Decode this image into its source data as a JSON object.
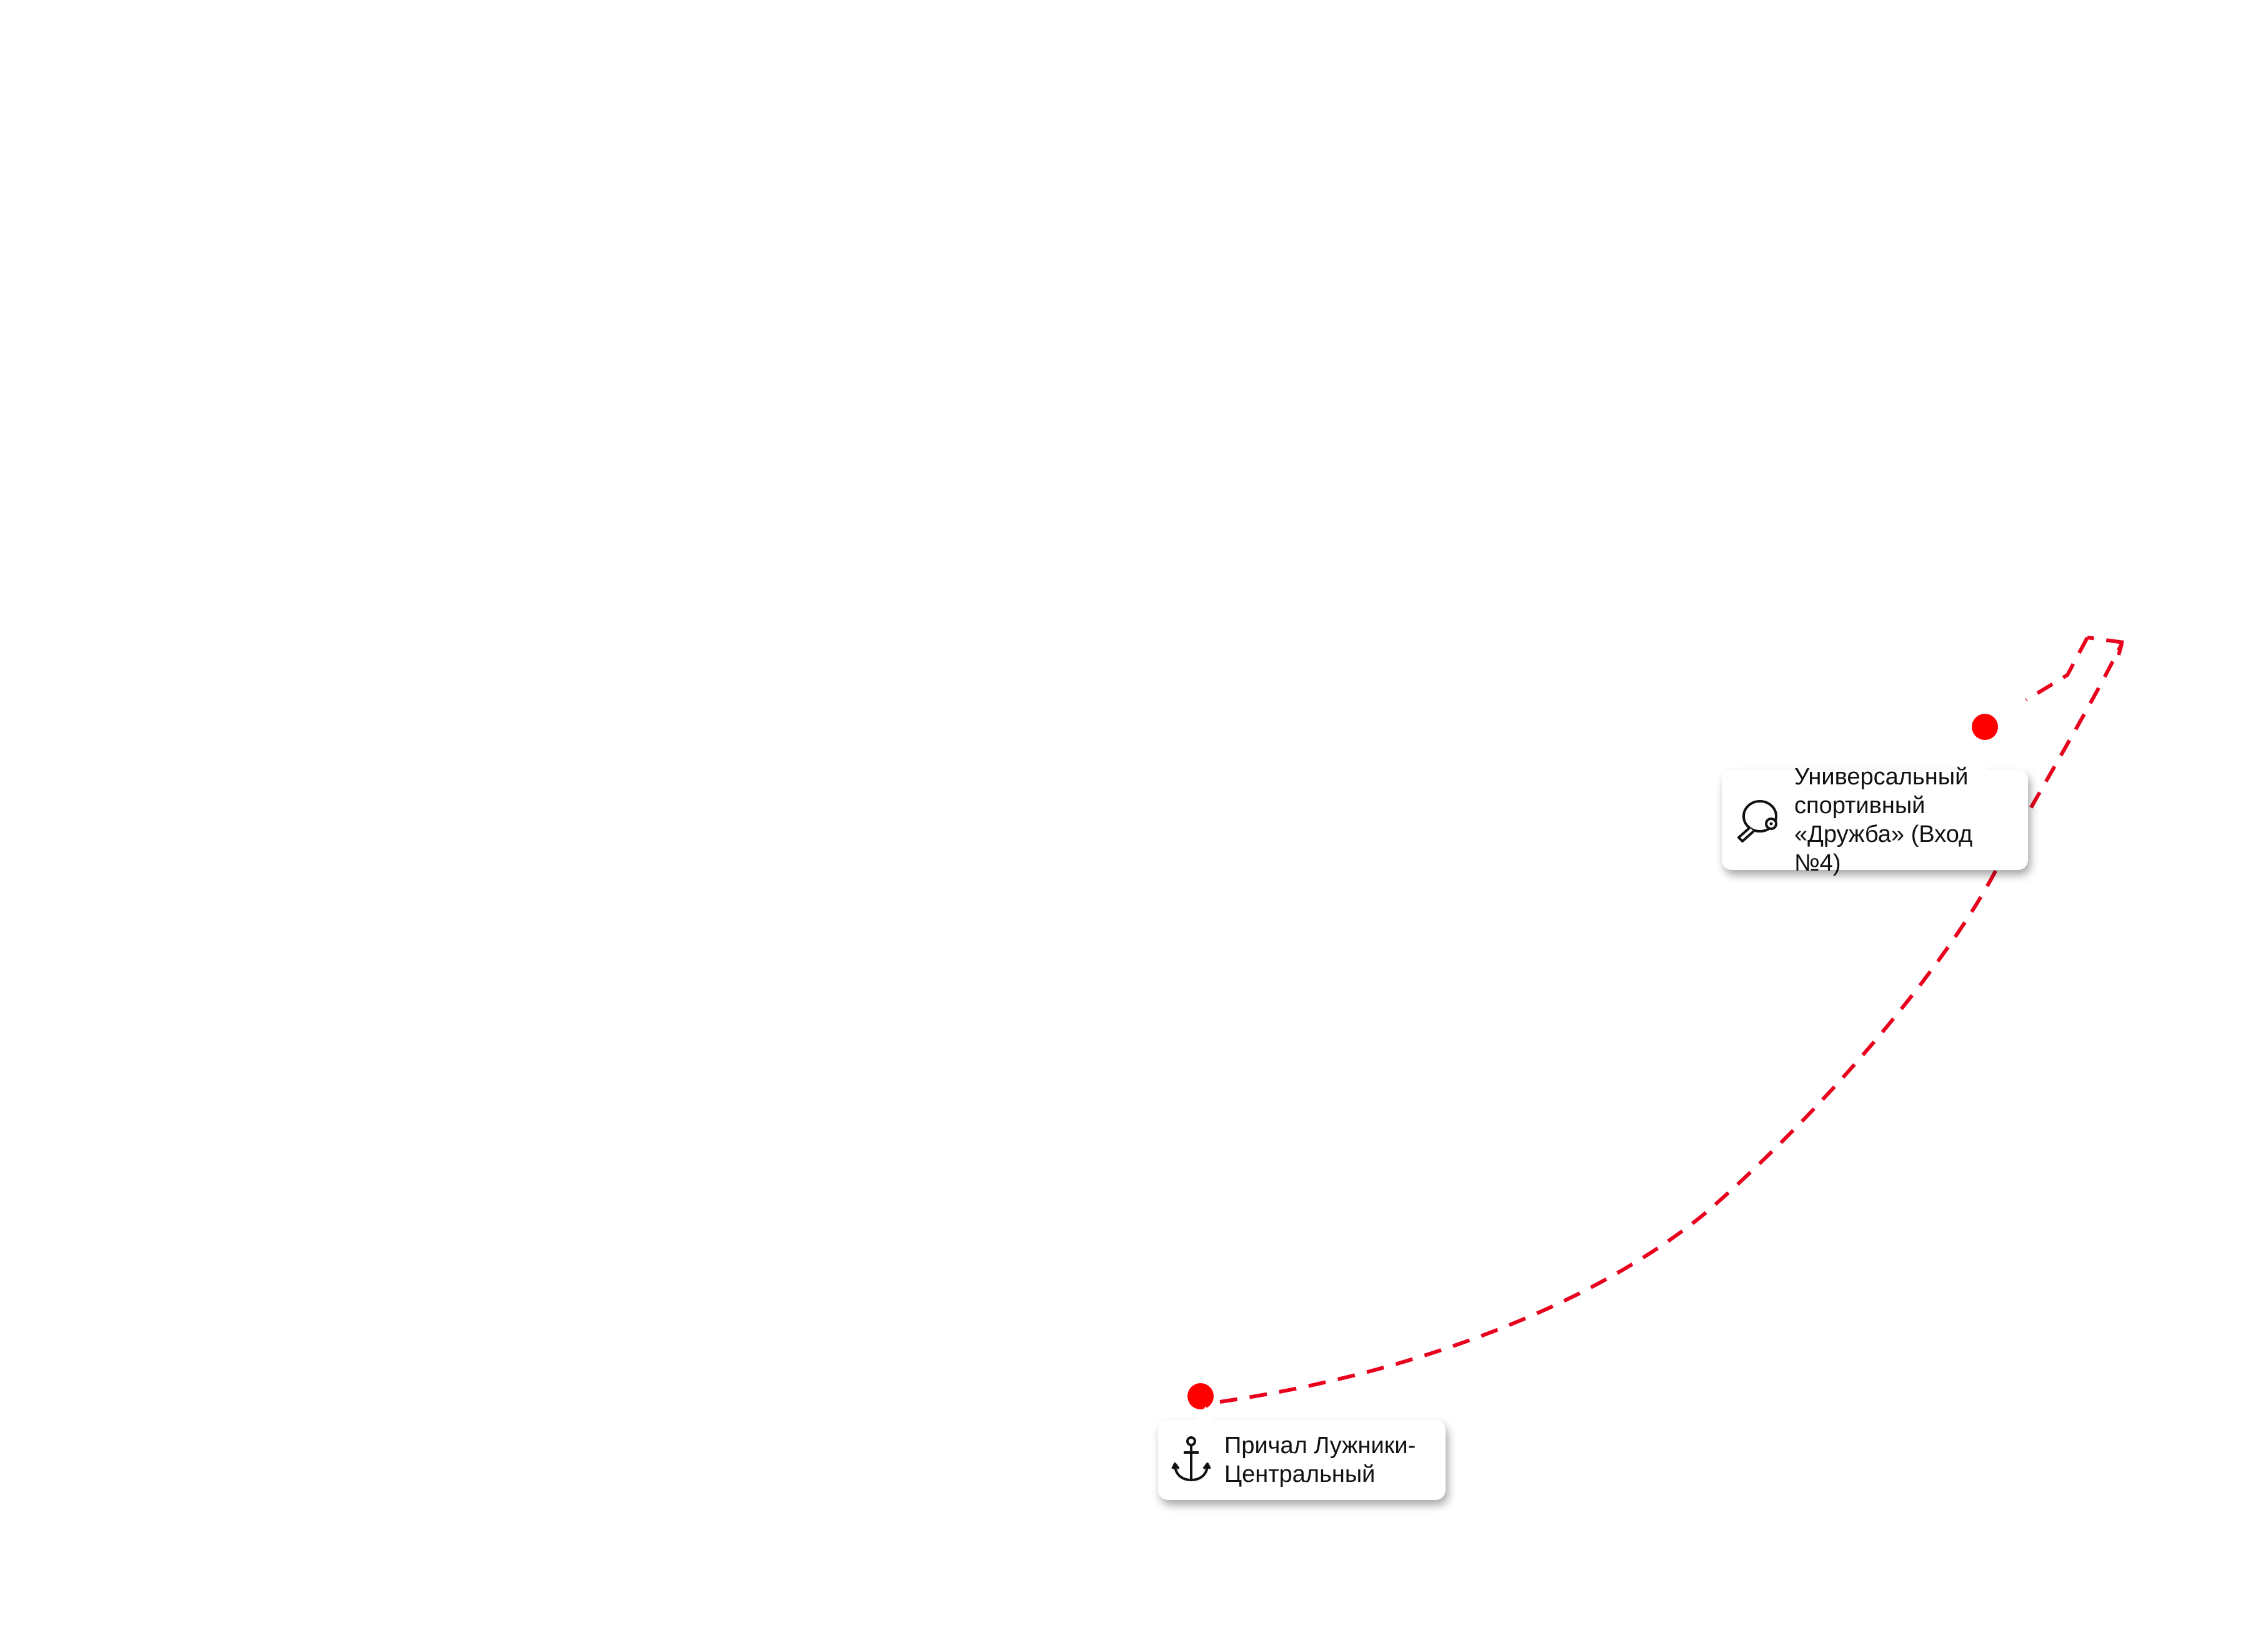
{
  "map": {
    "route_color": "#e8001c",
    "marker_color": "#ff0000",
    "route_style": "dashed",
    "points": [
      {
        "id": "stadium",
        "label": "Универсальный\nспортивный\n«Дружба» (Вход №4)",
        "icon": "table-tennis-racket-icon"
      },
      {
        "id": "pier",
        "label": "Причал Лужники-\nЦентральный",
        "icon": "anchor-icon"
      }
    ]
  }
}
